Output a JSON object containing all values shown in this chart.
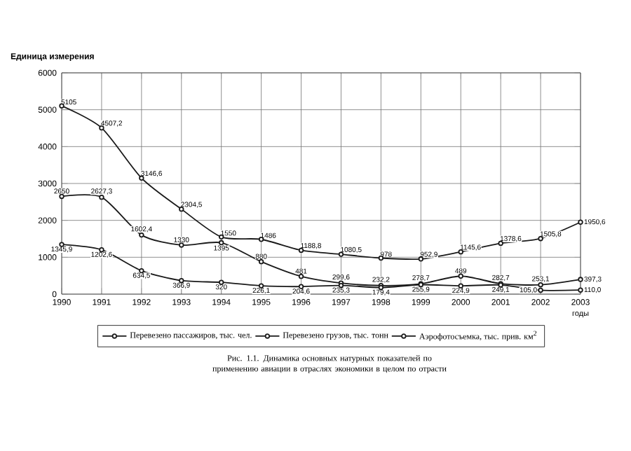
{
  "chart_data": {
    "type": "line",
    "ylabel": "Единица измерения",
    "xlabel": "годы",
    "annotations": [
      "Рис. 1.1. Динамика основных натурных показателей по применению авиации в отраслях экономики в целом по отрасти"
    ],
    "x": [
      1990,
      1991,
      1992,
      1993,
      1994,
      1995,
      1996,
      1997,
      1998,
      1999,
      2000,
      2001,
      2002,
      2003
    ],
    "xlim": [
      1990,
      2003
    ],
    "xticks": [
      1990,
      1991,
      1992,
      1993,
      1994,
      1995,
      1996,
      1997,
      1998,
      1999,
      2000,
      2001,
      2002,
      2003
    ],
    "ylim": [
      0,
      6000
    ],
    "yticks": [
      0,
      1000,
      2000,
      3000,
      4000,
      5000,
      6000
    ],
    "grid": true,
    "legend": "bottom",
    "marker": "circle",
    "series": [
      {
        "name": "Перевезено пассажиров, тыс. чел.",
        "color": "#1a1a1a",
        "values": [
          5105,
          4507.2,
          3146.6,
          2304.5,
          1550,
          1486,
          1188.8,
          1080.5,
          978,
          952.9,
          1145.6,
          1378.6,
          1505.8,
          1950.6
        ],
        "value_labels": [
          "5105",
          "4507,2",
          "3146,6",
          "2304,5",
          "1550",
          "1486",
          "1188,8",
          "1080,5",
          "978",
          "952,9",
          "1145,6",
          "1378,6",
          "1505,8",
          "1950,6"
        ]
      },
      {
        "name": "Перевезено грузов, тыс. тонн",
        "color": "#1a1a1a",
        "values": [
          2650,
          2627.3,
          1602.4,
          1330,
          1395,
          880,
          481,
          299.6,
          232.2,
          278.7,
          489,
          282.7,
          253.1,
          397.3
        ],
        "value_labels": [
          "2650",
          "2627,3",
          "1602,4",
          "1330",
          "1395",
          "880",
          "481",
          "299,6",
          "232,2",
          "278,7",
          "489",
          "282,7",
          "253,1",
          "397,3"
        ]
      },
      {
        "name": "Аэрофотосъемка, тыс. прив. км$^{2}$",
        "color": "#1a1a1a",
        "values": [
          1345.9,
          1202.6,
          634.5,
          366.9,
          320,
          226.1,
          204.6,
          235.3,
          179.4,
          255.9,
          224.9,
          249.1,
          105.0,
          110.0
        ],
        "value_labels": [
          "1345,9",
          "1202,6",
          "634,5",
          "366,9",
          "320",
          "226,1",
          "204,6",
          "235,3",
          "179,4",
          "255,9",
          "224,9",
          "249,1",
          "105,0",
          "110,0"
        ]
      }
    ]
  }
}
